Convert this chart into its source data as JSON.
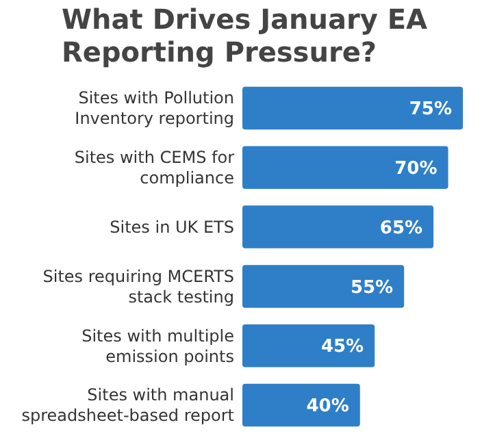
{
  "chart_data": {
    "type": "bar",
    "orientation": "horizontal",
    "title": "What Drives January EA Reporting Pressure?",
    "categories": [
      "Sites with Pollution Inventory reporting",
      "Sites with CEMS for compliance",
      "Sites in UK ETS",
      "Sites requiring MCERTS stack testing",
      "Sites with multiple emission points",
      "Sites with manual spreadsheet-based report"
    ],
    "values": [
      75,
      70,
      65,
      55,
      45,
      40
    ],
    "value_labels": [
      "75%",
      "70%",
      "65%",
      "55%",
      "45%",
      "40%"
    ],
    "color": "#2e7fc8"
  }
}
